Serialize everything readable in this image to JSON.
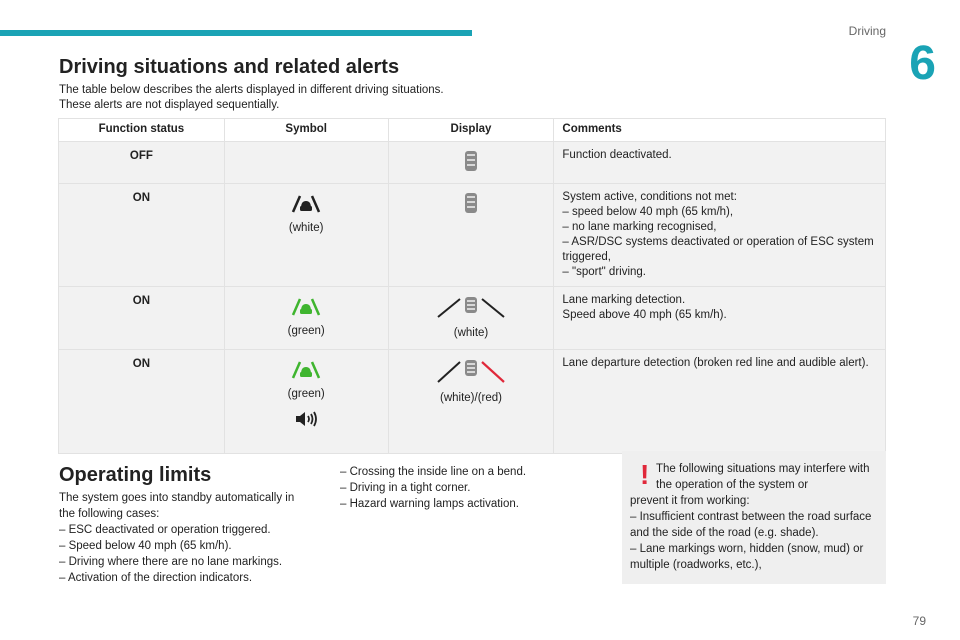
{
  "header": {
    "section": "Driving",
    "chapter": "6"
  },
  "title": "Driving situations and related alerts",
  "intro": [
    "The table below describes the alerts displayed in different driving situations.",
    "These alerts are not displayed sequentially."
  ],
  "table": {
    "headers": [
      "Function status",
      "Symbol",
      "Display",
      "Comments"
    ],
    "rows": [
      {
        "status": "OFF",
        "symbol_caption": "",
        "display_caption": "",
        "comments": [
          "Function deactivated."
        ]
      },
      {
        "status": "ON",
        "symbol_caption": "(white)",
        "display_caption": "",
        "comments": [
          "System active, conditions not met:",
          "–  speed below 40 mph (65 km/h),",
          "–  no lane marking recognised,",
          "–  ASR/DSC systems deactivated or operation of ESC system triggered,",
          "–  \"sport\" driving."
        ]
      },
      {
        "status": "ON",
        "symbol_caption": "(green)",
        "display_caption": "(white)",
        "comments": [
          "Lane marking detection.",
          "Speed above 40 mph (65 km/h)."
        ]
      },
      {
        "status": "ON",
        "symbol_caption": "(green)",
        "display_caption": "(white)/(red)",
        "comments": [
          "Lane departure detection (broken red line and audible alert)."
        ]
      }
    ]
  },
  "limits": {
    "title": "Operating limits",
    "left": [
      "The system goes into standby automatically in the following cases:",
      "–  ESC deactivated or operation triggered.",
      "–  Speed below 40 mph (65 km/h).",
      "–  Driving where there are no lane markings.",
      "–  Activation of the direction indicators."
    ],
    "middle": [
      "–  Crossing the inside line on a bend.",
      "–  Driving in a tight corner.",
      "–  Hazard warning lamps activation."
    ],
    "warning": {
      "icon": "!",
      "first": "The following situations may interfere with the operation of the system or",
      "rest": [
        "prevent it from working:",
        "–  Insufficient contrast between the road surface and the side of the road (e.g. shade).",
        "–  Lane markings worn, hidden (snow, mud) or multiple (roadworks, etc.),"
      ]
    }
  },
  "page_number": "79",
  "colors": {
    "accent": "#1aa3b5",
    "green": "#3fb52f",
    "red": "#e0283a"
  }
}
